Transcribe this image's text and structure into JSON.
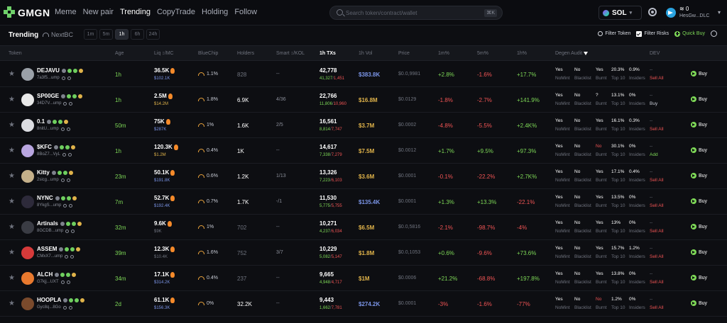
{
  "app": {
    "logo_text": "GMGN",
    "nav": [
      "Meme",
      "New pair",
      "Trending",
      "CopyTrade",
      "Holding",
      "Follow"
    ],
    "nav_active": "Trending",
    "search_placeholder": "Search token/contract/wallet",
    "search_kbd": "⌘K",
    "chain": "SOL",
    "balance": "≋ 0",
    "account": "HesGw...DLC"
  },
  "subbar": {
    "trending": "Trending",
    "nextbc": "NextBC",
    "timeframes": [
      "1m",
      "5m",
      "1h",
      "6h",
      "24h"
    ],
    "timeframe_active": "1h",
    "filter_token": "Filter Token",
    "filter_risks": "Filter Risks",
    "quick_buy": "Quick Buy"
  },
  "headers": {
    "token": "Token",
    "age": "Age",
    "liq": "Liq ↕/MC",
    "bluechip": "BlueChip",
    "holders": "Holders",
    "smart": "Smart ↕/KOL",
    "txs": "1h TXs",
    "vol": "1h Vol",
    "price": "Price",
    "m1": "1m%",
    "m5": "5m%",
    "h1": "1h%",
    "audit": "Degen Audit",
    "dev": "DEV"
  },
  "audit_labels": {
    "nomint": "NoMint",
    "blacklist": "Blacklist",
    "burnt": "Burnt",
    "top10": "Top 10",
    "insiders": "Insiders"
  },
  "buy_label": "Buy",
  "rows": [
    {
      "name": "DEJAVU",
      "addr": "7a3f5...ump",
      "avatar": "#9aa0a8",
      "age": "1h",
      "liq": "36.5K",
      "mc": "$102.1K",
      "mc_color": "blue",
      "bluechip": "1.1%",
      "holders": "828",
      "holders_dim": true,
      "smart": "--",
      "txs": "42,778",
      "buys": "41,327",
      "sells": "1,451",
      "vol": "$383.8K",
      "vol_color": "blue",
      "price": "$0.0,9981",
      "m1": "+2.8%",
      "m5": "-1.6%",
      "h1": "+17.7%",
      "nomint": "Yes",
      "blacklist": "No",
      "burnt": "Yes",
      "top10": "20.3%",
      "insiders": "0.9%",
      "dev1": "--",
      "dev2": "Sell All",
      "dev2_color": "red"
    },
    {
      "name": "SP00GE",
      "addr": "34D7V...ump",
      "avatar": "#e9e9e9",
      "age": "1h",
      "liq": "2.5M",
      "mc": "$14.2M",
      "mc_color": "gold",
      "bluechip": "1.8%",
      "holders": "6.9K",
      "holders_dim": false,
      "smart": "4/36",
      "txs": "22,766",
      "buys": "11,806",
      "sells": "10,960",
      "vol": "$16.8M",
      "vol_color": "gold",
      "price": "$0.0129",
      "m1": "-1.8%",
      "m5": "-2.7%",
      "h1": "+141.9%",
      "nomint": "Yes",
      "blacklist": "No",
      "burnt": "?",
      "top10": "13.1%",
      "insiders": "0%",
      "dev1": "--",
      "dev2": "Buy",
      "dev2_color": "white"
    },
    {
      "name": "0.1",
      "addr": "8nitU...ump",
      "avatar": "#dcdde2",
      "age": "50m",
      "liq": "75K",
      "mc": "$287K",
      "mc_color": "blue",
      "bluechip": "1%",
      "holders": "1.6K",
      "holders_dim": false,
      "smart": "2/5",
      "txs": "16,561",
      "buys": "8,814",
      "sells": "7,747",
      "vol": "$3.7M",
      "vol_color": "gold",
      "price": "$0.0002",
      "m1": "-4.8%",
      "m5": "-5.5%",
      "h1": "+2.4K%",
      "nomint": "Yes",
      "blacklist": "No",
      "burnt": "Yes",
      "top10": "16.1%",
      "insiders": "0.3%",
      "dev1": "--",
      "dev2": "Sell All",
      "dev2_color": "red"
    },
    {
      "name": "$KFC",
      "addr": "8BoZ7...VyL",
      "avatar": "#b9a6e0",
      "age": "1h",
      "liq": "120.3K",
      "mc": "$1.2M",
      "mc_color": "gold",
      "bluechip": "0.4%",
      "holders": "1K",
      "holders_dim": false,
      "smart": "--",
      "txs": "14,617",
      "buys": "7,338",
      "sells": "7,279",
      "vol": "$7.5M",
      "vol_color": "gold",
      "price": "$0.0012",
      "m1": "+1.7%",
      "m5": "+9.5%",
      "h1": "+97.3%",
      "nomint": "Yes",
      "blacklist": "No",
      "burnt": "No",
      "top10": "30.1%",
      "insiders": "0%",
      "dev1": "--",
      "dev2": "Add",
      "dev2_color": "green"
    },
    {
      "name": "Kitty",
      "addr": "2sicg...ump",
      "avatar": "#c4b08a",
      "age": "23m",
      "liq": "50.1K",
      "mc": "$191.8K",
      "mc_color": "blue",
      "bluechip": "0.6%",
      "holders": "1.2K",
      "holders_dim": false,
      "smart": "1/13",
      "txs": "13,326",
      "buys": "7,223",
      "sells": "6,103",
      "vol": "$3.6M",
      "vol_color": "gold",
      "price": "$0.0001",
      "m1": "-0.1%",
      "m5": "-22.2%",
      "h1": "+2.7K%",
      "nomint": "Yes",
      "blacklist": "No",
      "burnt": "Yes",
      "top10": "17.1%",
      "insiders": "0.4%",
      "dev1": "--",
      "dev2": "Sell All",
      "dev2_color": "red"
    },
    {
      "name": "NYNC",
      "addr": "8YkgS...ump",
      "avatar": "#2d2a3a",
      "age": "7m",
      "liq": "52.7K",
      "mc": "$192.4K",
      "mc_color": "blue",
      "bluechip": "0.7%",
      "holders": "1.7K",
      "holders_dim": false,
      "smart": "-/1",
      "txs": "11,530",
      "buys": "5,775",
      "sells": "5,755",
      "vol": "$135.4K",
      "vol_color": "blue",
      "price": "$0.0001",
      "m1": "+1.3%",
      "m5": "+13.3%",
      "h1": "-22.1%",
      "nomint": "Yes",
      "blacklist": "No",
      "burnt": "Yes",
      "top10": "13.5%",
      "insiders": "0%",
      "dev1": "--",
      "dev2": "Sell All",
      "dev2_color": "red"
    },
    {
      "name": "Artinals",
      "addr": "8GCDB...ump",
      "avatar": "#3a3c44",
      "age": "32m",
      "liq": "9.6K",
      "mc": "$9K",
      "mc_color": "dim",
      "bluechip": "1%",
      "holders": "702",
      "holders_dim": true,
      "smart": "--",
      "txs": "10,271",
      "buys": "4,237",
      "sells": "6,034",
      "vol": "$6.5M",
      "vol_color": "gold",
      "price": "$0.0,5816",
      "m1": "-2.1%",
      "m5": "-98.7%",
      "h1": "-4%",
      "nomint": "Yes",
      "blacklist": "No",
      "burnt": "Yes",
      "top10": "13%",
      "insiders": "0%",
      "dev1": "--",
      "dev2": "Sell All",
      "dev2_color": "red"
    },
    {
      "name": "ASSEM",
      "addr": "CMxX7...ump",
      "avatar": "#d63a3a",
      "age": "39m",
      "liq": "12.3K",
      "mc": "$10.4K",
      "mc_color": "dim",
      "bluechip": "1.6%",
      "holders": "752",
      "holders_dim": true,
      "smart": "3/7",
      "txs": "10,229",
      "buys": "5,082",
      "sells": "5,147",
      "vol": "$1.8M",
      "vol_color": "gold",
      "price": "$0.0,1053",
      "m1": "+0.6%",
      "m5": "-9.6%",
      "h1": "+73.6%",
      "nomint": "Yes",
      "blacklist": "No",
      "burnt": "Yes",
      "top10": "15.7%",
      "insiders": "1.2%",
      "dev1": "--",
      "dev2": "Sell All",
      "dev2_color": "red"
    },
    {
      "name": "ALCH",
      "addr": "G7kjj...UXT",
      "avatar": "#e8792e",
      "age": "34m",
      "liq": "17.1K",
      "mc": "$314.2K",
      "mc_color": "blue",
      "bluechip": "0.4%",
      "holders": "237",
      "holders_dim": true,
      "smart": "--",
      "txs": "9,665",
      "buys": "4,948",
      "sells": "4,717",
      "vol": "$1M",
      "vol_color": "gold",
      "price": "$0.0006",
      "m1": "+21.2%",
      "m5": "-68.8%",
      "h1": "+197.8%",
      "nomint": "Yes",
      "blacklist": "No",
      "burnt": "Yes",
      "top10": "13.8%",
      "insiders": "0%",
      "dev1": "--",
      "dev2": "Sell All",
      "dev2_color": "red"
    },
    {
      "name": "HOOPLA",
      "addr": "Gyc8q...8Go",
      "avatar": "#7a4a2c",
      "age": "2d",
      "liq": "61.1K",
      "mc": "$156.3K",
      "mc_color": "blue",
      "bluechip": "0%",
      "holders": "32.2K",
      "holders_dim": false,
      "smart": "--",
      "txs": "9,443",
      "buys": "1,662",
      "sells": "7,781",
      "vol": "$274.2K",
      "vol_color": "blue",
      "price": "$0.0001",
      "m1": "-3%",
      "m5": "-1.6%",
      "h1": "-77%",
      "nomint": "Yes",
      "blacklist": "No",
      "burnt": "No",
      "top10": "1.2%",
      "insiders": "0%",
      "dev1": "--",
      "dev2": "Sell All",
      "dev2_color": "red"
    }
  ]
}
